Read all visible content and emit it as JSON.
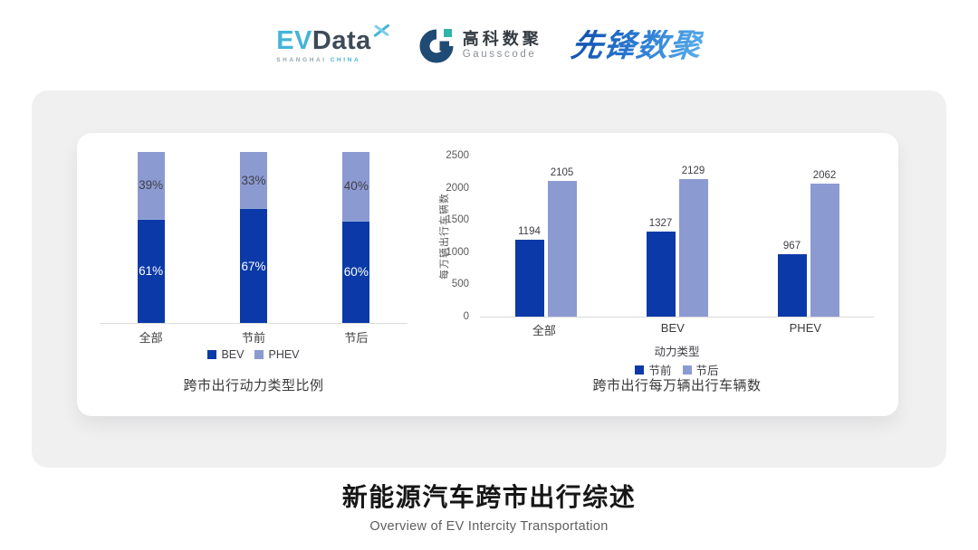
{
  "header": {
    "evdata": {
      "ev": "EV",
      "data": "Data",
      "mark_icon": "propeller-x-icon",
      "sub_shanghai": "SHANGHAI",
      "sub_china": "CHINA"
    },
    "gausscode": {
      "mark_icon": "gausscode-g-icon",
      "cn": "高科数聚",
      "en": "Gausscode"
    },
    "xianfeng": {
      "text": "先锋数聚"
    }
  },
  "colors": {
    "series_dark_blue": "#0B3AA8",
    "series_light_periwinkle": "#8C9AD2",
    "panel_gray": "#F0F0F1",
    "evdata_blue": "#45B4D8",
    "evdata_slate": "#3E4A57",
    "gausscode_navy": "#1F4A73",
    "gausscode_teal": "#2FB5A5",
    "xianfeng_blue": "#2E7FD6"
  },
  "chart_data": [
    {
      "type": "bar",
      "variant": "stacked-100-percent",
      "title": "跨市出行动力类型比例",
      "categories": [
        "全部",
        "节前",
        "节后"
      ],
      "series": [
        {
          "name": "BEV",
          "color": "#0B3AA8",
          "values": [
            61,
            67,
            60
          ],
          "labels": [
            "61%",
            "67%",
            "60%"
          ]
        },
        {
          "name": "PHEV",
          "color": "#8C9AD2",
          "values": [
            39,
            33,
            40
          ],
          "labels": [
            "39%",
            "33%",
            "40%"
          ]
        }
      ],
      "ylim": [
        0,
        100
      ],
      "grid": false,
      "legend_position": "bottom"
    },
    {
      "type": "bar",
      "variant": "grouped",
      "title": "跨市出行每万辆出行车辆数",
      "xlabel": "动力类型",
      "ylabel": "每万辆出行车辆数",
      "categories": [
        "全部",
        "BEV",
        "PHEV"
      ],
      "yticks": [
        0,
        500,
        1000,
        1500,
        2000,
        2500
      ],
      "ylim": [
        0,
        2500
      ],
      "series": [
        {
          "name": "节前",
          "color": "#0B3AA8",
          "values": [
            1194,
            1327,
            967
          ]
        },
        {
          "name": "节后",
          "color": "#8C9AD2",
          "values": [
            2105,
            2129,
            2062
          ]
        }
      ],
      "grid": false,
      "legend_position": "bottom"
    }
  ],
  "footer": {
    "title": "新能源汽车跨市出行综述",
    "subtitle": "Overview of EV Intercity Transportation"
  }
}
